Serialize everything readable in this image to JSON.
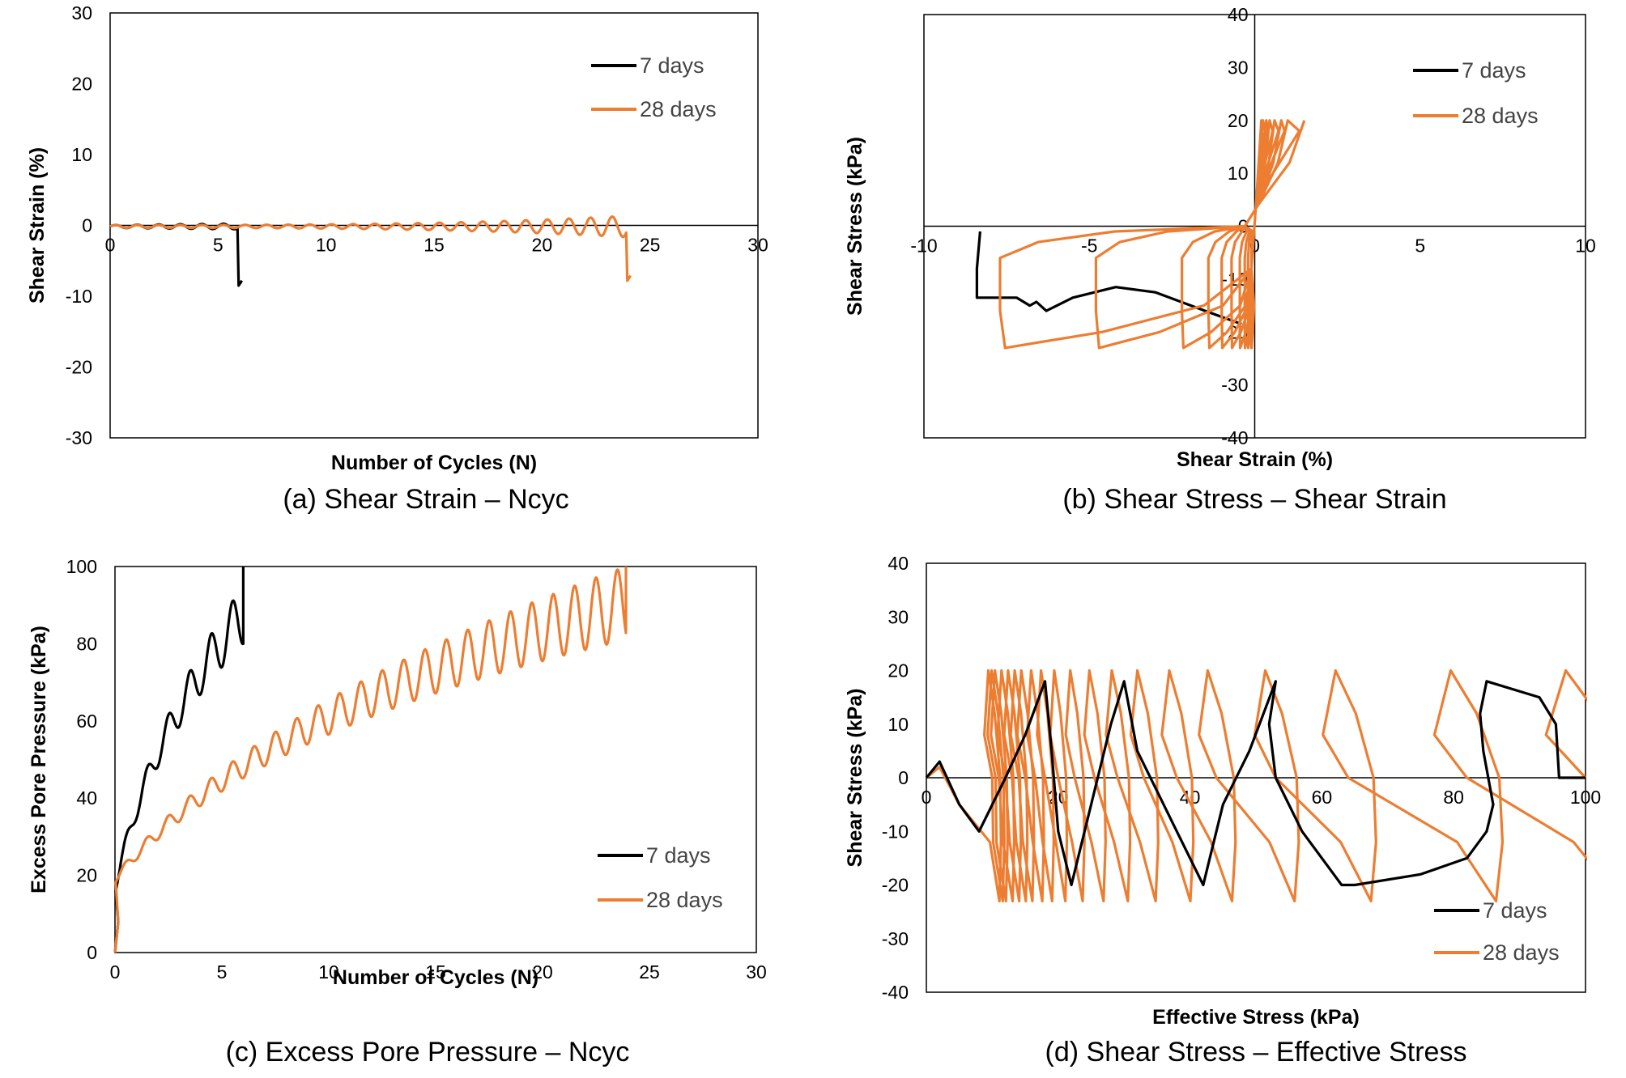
{
  "colors": {
    "7 days": "#000000",
    "28 days": "#ed7d31"
  },
  "chart_data": [
    {
      "id": "a",
      "type": "line",
      "caption": "(a) Shear Strain – Ncyc",
      "xlabel": "Number of Cycles (N)",
      "ylabel": "Shear Strain (%)",
      "xlim": [
        0,
        30
      ],
      "ylim": [
        -30,
        30
      ],
      "xticks": [
        0,
        5,
        10,
        15,
        20,
        25,
        30
      ],
      "yticks": [
        -30,
        -20,
        -10,
        0,
        10,
        20,
        30
      ],
      "cross_axes": false,
      "legend": "top-right",
      "series": [
        {
          "name": "7 days",
          "kind": "strain",
          "ncyc": 5.9,
          "amp_start": 0.2,
          "amp_end": 0.4,
          "final": -8.5
        },
        {
          "name": "28 days",
          "kind": "strain",
          "ncyc": 23.9,
          "amp_start": 0.2,
          "amp_end": 1.5,
          "growth": 3,
          "final": -7.8
        }
      ]
    },
    {
      "id": "b",
      "type": "line",
      "caption": "(b) Shear Stress – Shear Strain",
      "xlabel": "Shear Strain (%)",
      "ylabel": "Shear Stress (kPa)",
      "xlim": [
        -10,
        10
      ],
      "ylim": [
        -40,
        40
      ],
      "xticks": [
        -10,
        -5,
        0,
        5,
        10
      ],
      "yticks": [
        -40,
        -30,
        -20,
        -10,
        0,
        10,
        20,
        30,
        40
      ],
      "cross_axes": true,
      "legend": "top-right",
      "series": [
        {
          "name": "7 days",
          "x": [
            -8.3,
            -8.4,
            -8.4,
            -7.2,
            -6.8,
            -6.6,
            -6.3,
            -5.5,
            -4.2,
            -3.0,
            -1.5,
            -0.4
          ],
          "y": [
            -1,
            -8,
            -13.5,
            -13.5,
            -15,
            -14.3,
            -16,
            -13.5,
            -11.5,
            -12.5,
            -16,
            -18.5
          ]
        },
        {
          "name": "28 days",
          "kind": "stress-strain-loops",
          "peaks": [
            -7.7,
            -4.8,
            -2.2,
            -1.4,
            -1.0,
            -0.7,
            -0.45,
            -0.3,
            -0.2,
            -0.1
          ],
          "pos_peaks": [
            1.5,
            1.0,
            0.8,
            0.6,
            0.45,
            0.35,
            0.25,
            0.2
          ],
          "tau_max": 20,
          "tau_min": -23
        }
      ]
    },
    {
      "id": "c",
      "type": "line",
      "caption": "(c) Excess Pore Pressure – Ncyc",
      "xlabel": "Number of Cycles (N)",
      "ylabel": "Excess Pore Pressure (kPa)",
      "xlim": [
        0,
        30
      ],
      "ylim": [
        0,
        100
      ],
      "xticks": [
        0,
        5,
        10,
        15,
        20,
        25,
        30
      ],
      "yticks": [
        0,
        20,
        40,
        60,
        80,
        100
      ],
      "cross_axes": false,
      "legend": "bottom-right",
      "series": [
        {
          "name": "7 days",
          "kind": "pore",
          "ncyc": 6.0,
          "min_start": 15,
          "min_end": 80,
          "amp_start": 3,
          "amp_end": 15,
          "c": 1.8
        },
        {
          "name": "28 days",
          "kind": "pore",
          "ncyc": 23.9,
          "min_start": 18,
          "min_end": 81,
          "amp_start": 2,
          "amp_end": 19,
          "c": 6
        }
      ]
    },
    {
      "id": "d",
      "type": "line",
      "caption": "(d) Shear Stress – Effective Stress",
      "xlabel": "Effective Stress (kPa)",
      "ylabel": "Shear Stress (kPa)",
      "xlim": [
        0,
        100
      ],
      "ylim": [
        -40,
        40
      ],
      "xticks": [
        0,
        20,
        40,
        60,
        80,
        100
      ],
      "yticks": [
        -40,
        -30,
        -20,
        -10,
        0,
        10,
        20,
        30,
        40
      ],
      "cross_axes": false,
      "legend": "bottom-right",
      "series": [
        {
          "name": "7 days",
          "x": [
            100,
            96,
            95.5,
            93,
            85,
            84,
            84.5,
            86,
            85,
            82,
            75,
            65,
            63,
            57,
            53,
            52,
            53,
            49,
            45,
            43,
            42,
            38,
            32,
            30,
            28,
            25,
            22,
            20,
            19,
            18,
            15,
            12,
            8,
            5,
            2,
            0
          ],
          "y": [
            0,
            0,
            10,
            15,
            18,
            12,
            5,
            -5,
            -10,
            -15,
            -18,
            -20,
            -20,
            -10,
            0,
            10,
            18,
            5,
            -5,
            -15,
            -20,
            -10,
            5,
            18,
            10,
            -5,
            -20,
            -10,
            5,
            18,
            8,
            0,
            -10,
            -5,
            3,
            0
          ]
        },
        {
          "name": "28 days",
          "kind": "stress-effective-loops",
          "cx": [
            100,
            82,
            64,
            53,
            44,
            38,
            33,
            29,
            25.5,
            22.5,
            20,
            18,
            16.5,
            15,
            14,
            13,
            12,
            11,
            10.5,
            10
          ],
          "tau_max": 20,
          "tau_min": -23
        }
      ]
    }
  ]
}
